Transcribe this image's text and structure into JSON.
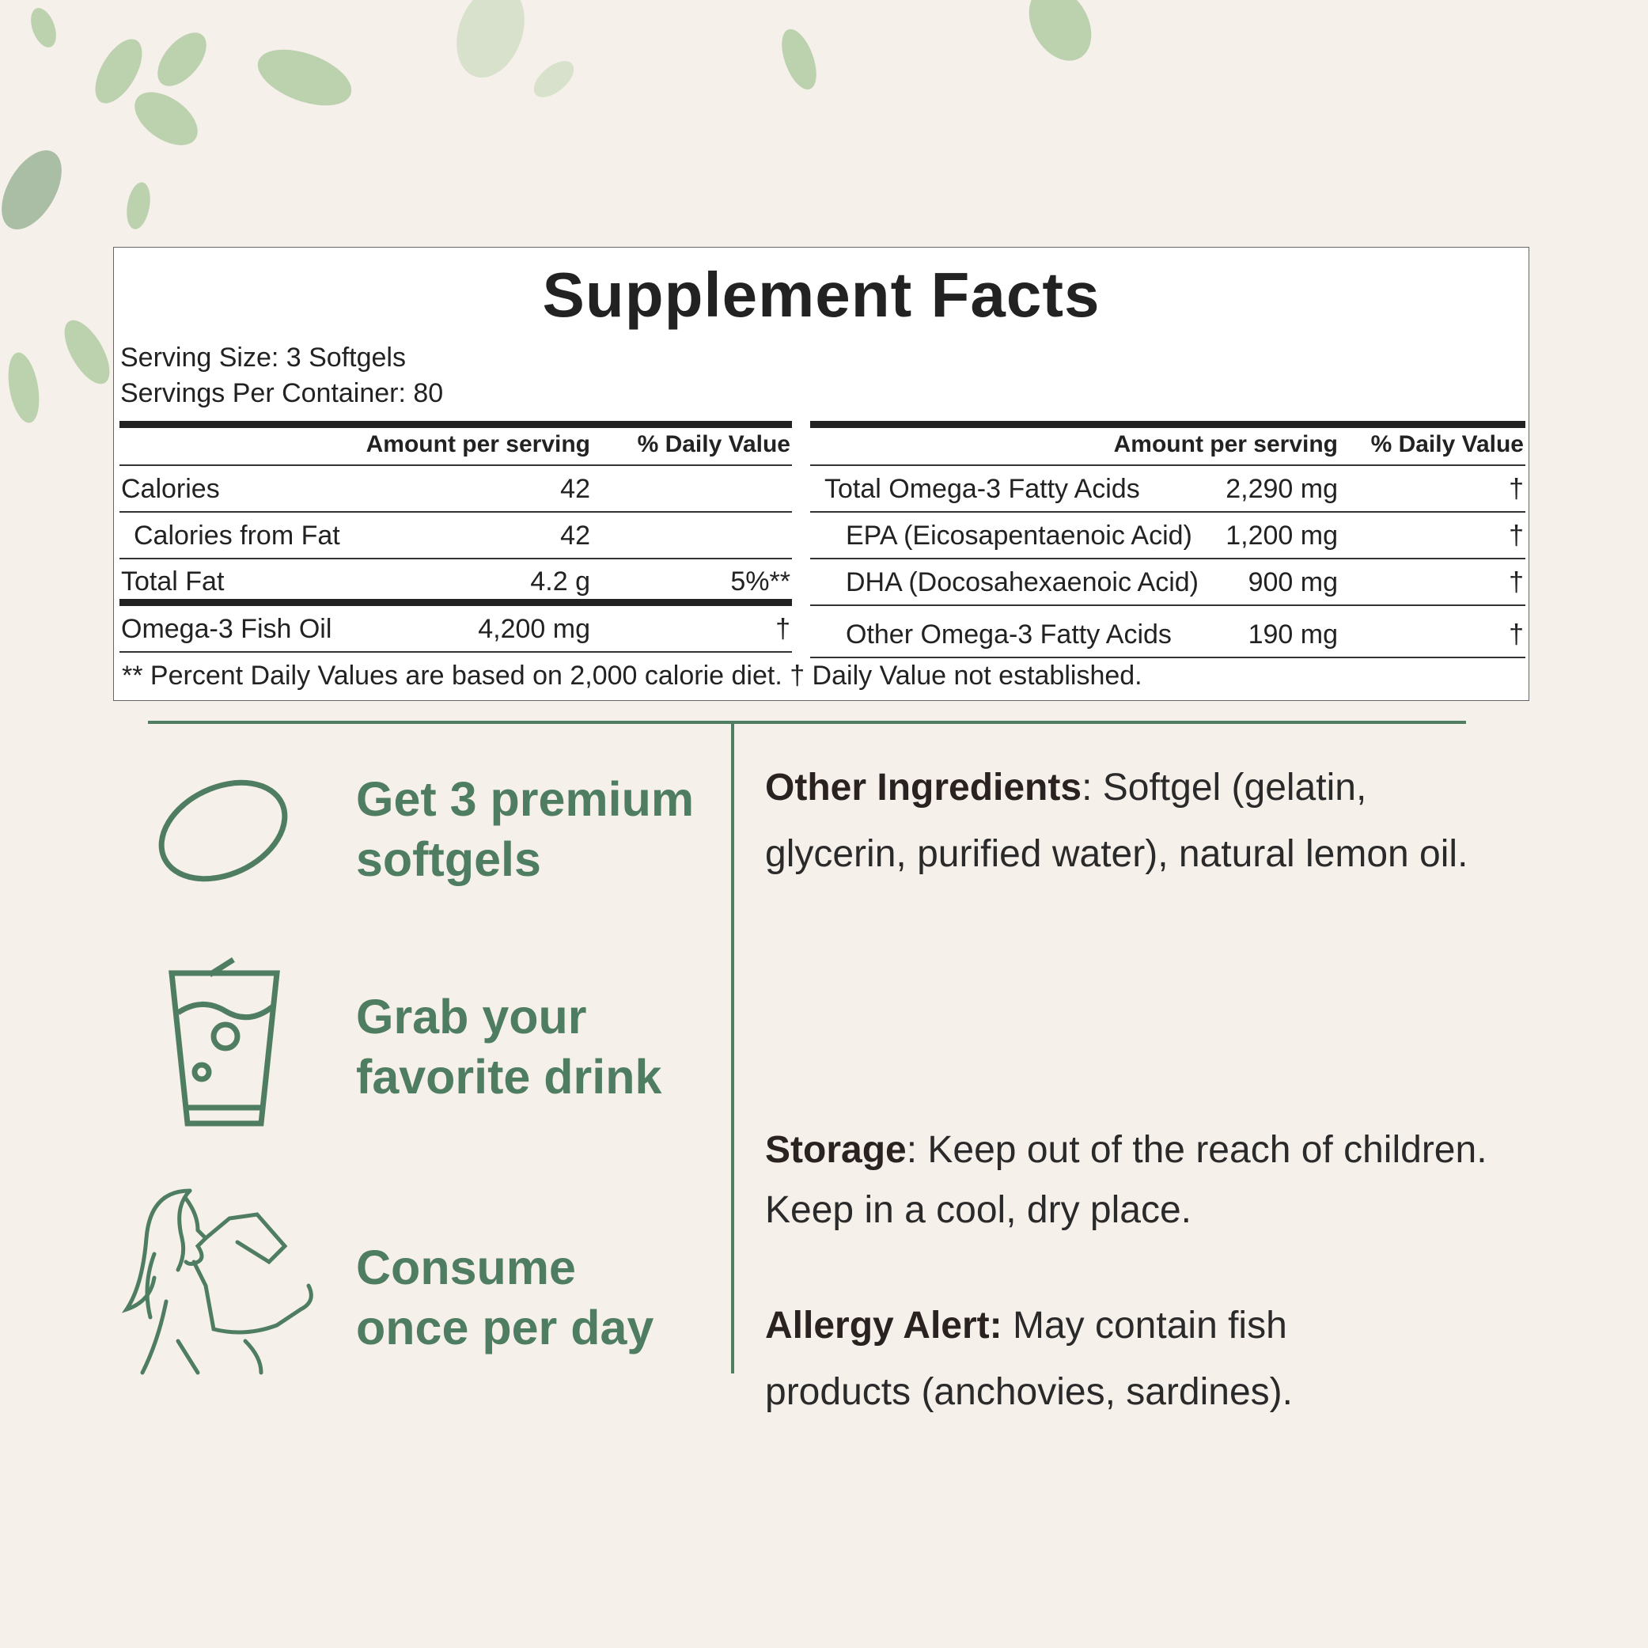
{
  "facts": {
    "title": "Supplement Facts",
    "serving_size": "Serving Size: 3 Softgels",
    "servings_per_container": "Servings Per Container: 80",
    "left_table": {
      "headers": [
        "Amount per serving",
        "% Daily Value"
      ],
      "rows": [
        {
          "name": "Calories",
          "amount": "42",
          "dv": ""
        },
        {
          "name": "Calories from Fat",
          "amount": "42",
          "dv": ""
        },
        {
          "name": "Total Fat",
          "amount": "4.2 g",
          "dv": "5%**"
        },
        {
          "name": "Omega-3 Fish Oil",
          "amount": "4,200 mg",
          "dv": "†"
        }
      ]
    },
    "right_table": {
      "headers": [
        "Amount per serving",
        "% Daily Value"
      ],
      "rows": [
        {
          "name": "Total Omega-3 Fatty Acids",
          "amount": "2,290 mg",
          "dv": "†"
        },
        {
          "name": "EPA (Eicosapentaenoic Acid)",
          "amount": "1,200 mg",
          "dv": "†"
        },
        {
          "name": "DHA (Docosahexaenoic Acid)",
          "amount": "900 mg",
          "dv": "†"
        },
        {
          "name": "Other Omega-3 Fatty Acids",
          "amount": "190 mg",
          "dv": "†"
        }
      ]
    },
    "footnote": "** Percent Daily Values are based on 2,000 calorie diet. † Daily Value not established."
  },
  "steps": [
    {
      "icon": "softgel-icon",
      "line1": "Get 3 premium",
      "line2": "softgels"
    },
    {
      "icon": "drink-glass-icon",
      "line1": "Grab your",
      "line2": "favorite drink"
    },
    {
      "icon": "woman-drinking-icon",
      "line1": "Consume",
      "line2": "once per day"
    }
  ],
  "info": {
    "other_label": "Other Ingredients",
    "other_text": ": Softgel (gelatin, glycerin, purified water), natural lemon oil.",
    "storage_label": "Storage",
    "storage_text": ": Keep out of the reach of children. Keep in a cool, dry place.",
    "allergy_label": "Allergy Alert:",
    "allergy_text": " May contain fish products (anchovies, sardines)."
  },
  "colors": {
    "accent": "#4e7d62",
    "background": "#f6f0ea",
    "text": "#222222"
  }
}
